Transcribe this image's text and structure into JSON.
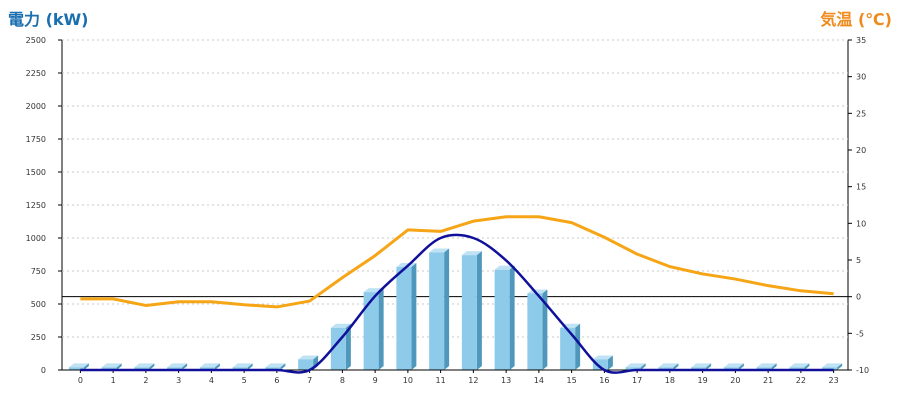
{
  "colors": {
    "power_title": "#1a6fb0",
    "temp_title": "#f08a1c",
    "bar_front": "#8ecbea",
    "bar_side": "#4f98bb",
    "bar_top": "#bfe3f4",
    "curve": "#10109a",
    "temp_line": "#f5a516",
    "grid": "#c8c8c8"
  },
  "chart_data": {
    "type": "bar",
    "title": "",
    "y_left_label": "電力 (kW)",
    "y_right_label": "気温 (℃)",
    "categories": [
      "0",
      "1",
      "2",
      "3",
      "4",
      "5",
      "6",
      "7",
      "8",
      "9",
      "10",
      "11",
      "12",
      "13",
      "14",
      "15",
      "16",
      "17",
      "18",
      "19",
      "20",
      "21",
      "22",
      "23"
    ],
    "y_left_ticks": [
      "0",
      "250",
      "500",
      "750",
      "1000",
      "1250",
      "1500",
      "1750",
      "2000",
      "2250",
      "2500"
    ],
    "y_right_ticks": [
      "-10",
      "-5",
      "0",
      "5",
      "10",
      "15",
      "20",
      "25",
      "30",
      "35"
    ],
    "ylim_left": [
      0,
      2500
    ],
    "ylim_right": [
      -10,
      35
    ],
    "grid": true,
    "series": [
      {
        "kind": "bar",
        "axis": "left",
        "values": [
          20,
          20,
          20,
          20,
          20,
          20,
          20,
          80,
          320,
          590,
          780,
          890,
          870,
          760,
          580,
          320,
          80,
          20,
          20,
          20,
          20,
          20,
          20,
          20
        ]
      },
      {
        "kind": "line",
        "axis": "left",
        "values": [
          0,
          0,
          0,
          0,
          0,
          0,
          0,
          0,
          250,
          560,
          790,
          1000,
          1000,
          830,
          560,
          270,
          0,
          0,
          0,
          0,
          0,
          0,
          0,
          0
        ]
      },
      {
        "kind": "line",
        "axis": "right",
        "values": [
          -0.3,
          -0.3,
          -1.2,
          -0.7,
          -0.7,
          -1.1,
          -1.4,
          -0.6,
          2.6,
          5.6,
          9.1,
          8.9,
          10.3,
          10.9,
          10.9,
          10.1,
          8.1,
          5.8,
          4.1,
          3.1,
          2.4,
          1.5,
          0.8,
          0.4
        ]
      }
    ]
  }
}
